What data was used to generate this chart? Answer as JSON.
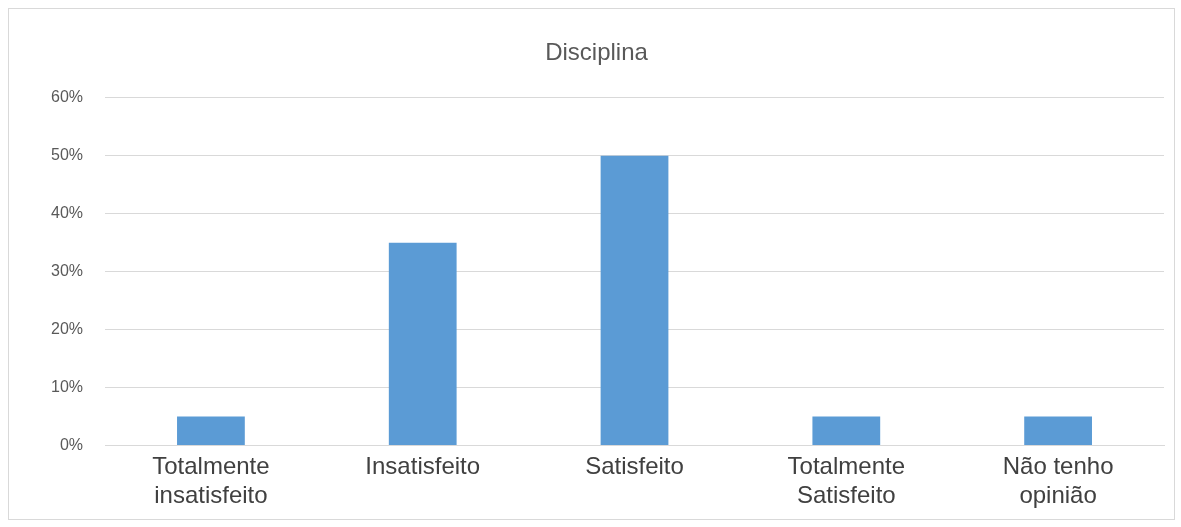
{
  "chart_data": {
    "type": "bar",
    "title": "Disciplina",
    "categories": [
      "Totalmente insatisfeito",
      "Insatisfeito",
      "Satisfeito",
      "Totalmente Satisfeito",
      "Não tenho opinião"
    ],
    "values": [
      5,
      35,
      50,
      5,
      5
    ],
    "color": "#5b9bd5",
    "ylim": [
      0,
      60
    ],
    "yticks": [
      {
        "value": 0,
        "label": "0%"
      },
      {
        "value": 10,
        "label": "10%"
      },
      {
        "value": 20,
        "label": "20%"
      },
      {
        "value": 30,
        "label": "30%"
      },
      {
        "value": 40,
        "label": "40%"
      },
      {
        "value": 50,
        "label": "50%"
      },
      {
        "value": 60,
        "label": "60%"
      }
    ],
    "grid": "y",
    "legend": false
  }
}
